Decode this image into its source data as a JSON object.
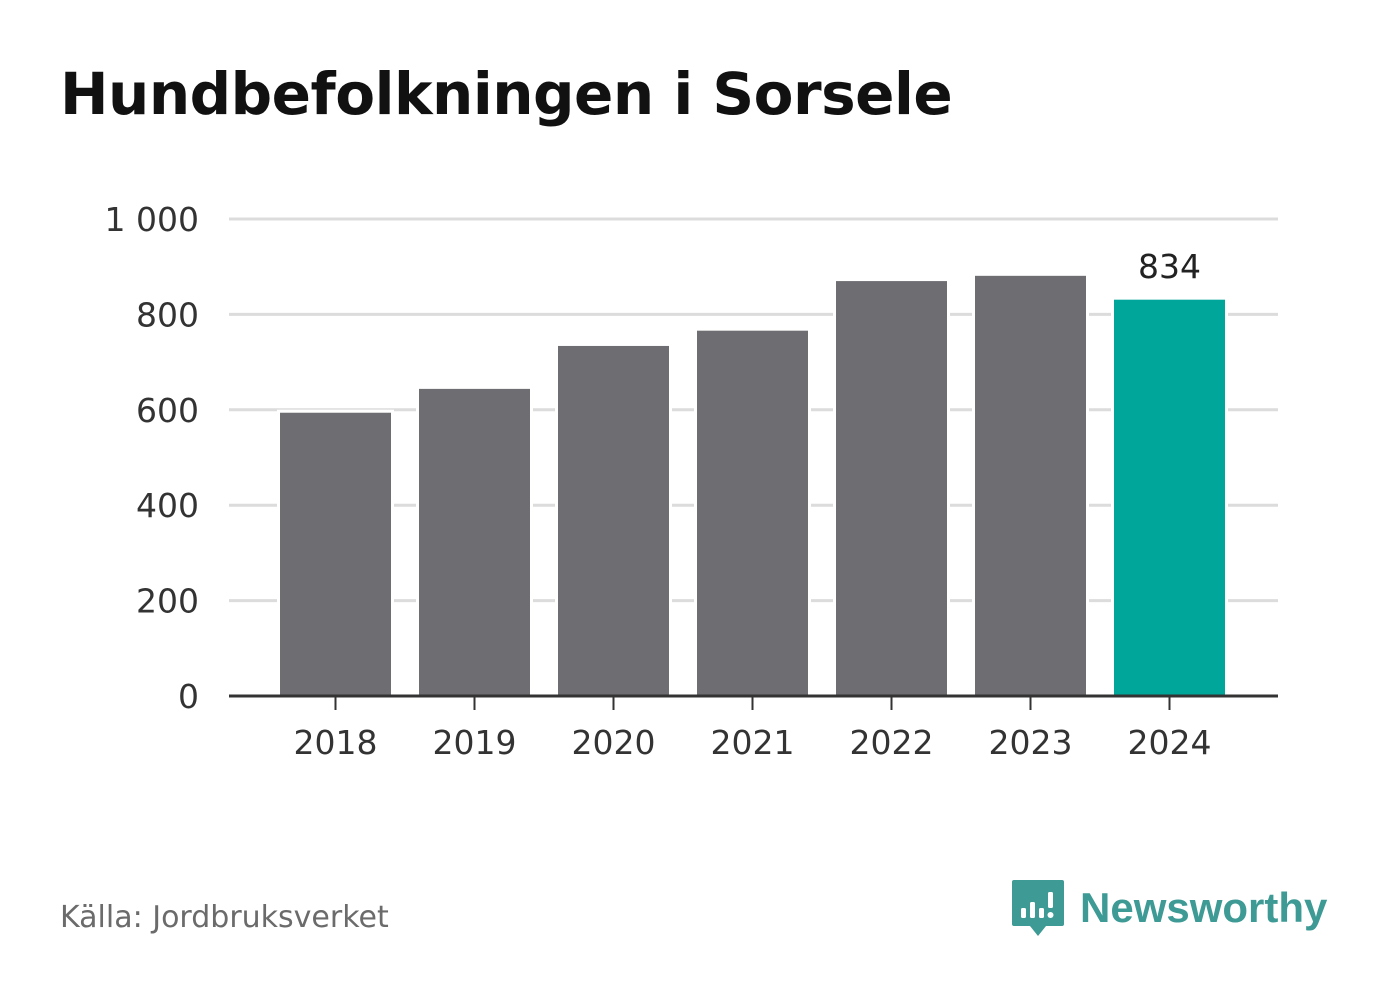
{
  "title": "Hundbefolkningen i Sorsele",
  "source": "Källa: Jordbruksverket",
  "brand": {
    "name": "Newsworthy",
    "icon": "newsworthy-logo-icon",
    "color": "#3d9a95"
  },
  "colors": {
    "bar": "#6e6d72",
    "highlight": "#00a69a",
    "grid": "#dcdcdc",
    "axis": "#333333"
  },
  "chart_data": {
    "type": "bar",
    "categories": [
      "2018",
      "2019",
      "2020",
      "2021",
      "2022",
      "2023",
      "2024"
    ],
    "values": [
      597,
      647,
      737,
      769,
      873,
      884,
      834
    ],
    "highlight_index": 6,
    "data_labels": [
      {
        "index": 6,
        "text": "834"
      }
    ],
    "yticks": [
      {
        "value": 0,
        "label": "0"
      },
      {
        "value": 200,
        "label": "200"
      },
      {
        "value": 400,
        "label": "400"
      },
      {
        "value": 600,
        "label": "600"
      },
      {
        "value": 800,
        "label": "800"
      },
      {
        "value": 1000,
        "label": "1 000"
      }
    ],
    "ylim": [
      0,
      1000
    ],
    "grid": true,
    "legend": "none"
  }
}
